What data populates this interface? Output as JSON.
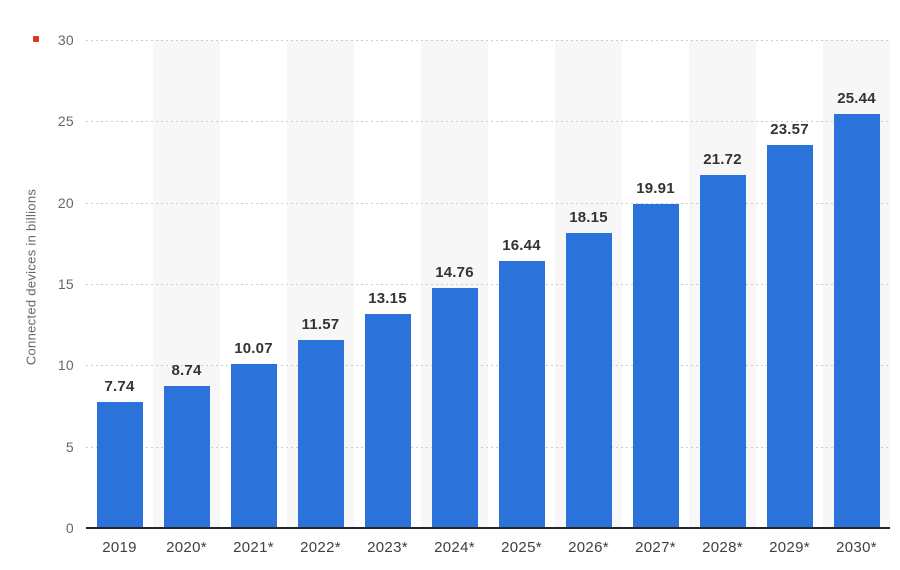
{
  "chart_data": {
    "type": "bar",
    "title": "",
    "xlabel": "",
    "ylabel": "Connected devices in billions",
    "categories": [
      "2019",
      "2020*",
      "2021*",
      "2022*",
      "2023*",
      "2024*",
      "2025*",
      "2026*",
      "2027*",
      "2028*",
      "2029*",
      "2030*"
    ],
    "values": [
      7.74,
      8.74,
      10.07,
      11.57,
      13.15,
      14.76,
      16.44,
      18.15,
      19.91,
      21.72,
      23.57,
      25.44
    ],
    "value_labels": [
      "7.74",
      "8.74",
      "10.07",
      "11.57",
      "13.15",
      "14.76",
      "16.44",
      "18.15",
      "19.91",
      "21.72",
      "23.57",
      "25.44"
    ],
    "ylim": [
      0,
      30
    ],
    "yticks": [
      0,
      5,
      10,
      15,
      20,
      25,
      30
    ],
    "grid": "horizontal-dotted",
    "legend": "none",
    "alternating_column_bands": true,
    "bands_on_categories": [
      "2020*",
      "2022*",
      "2024*",
      "2026*",
      "2028*",
      "2030*"
    ],
    "colors": {
      "bar": "#2b73da",
      "band": "#f7f7f7",
      "gridline": "#cccccc",
      "axis_line": "#262626",
      "value_label": "#333333",
      "y_tick_label": "#666666",
      "x_tick_label": "#404040",
      "axis_title": "#666666",
      "artifact_dot": "#e1351d",
      "background": "#ffffff"
    }
  }
}
